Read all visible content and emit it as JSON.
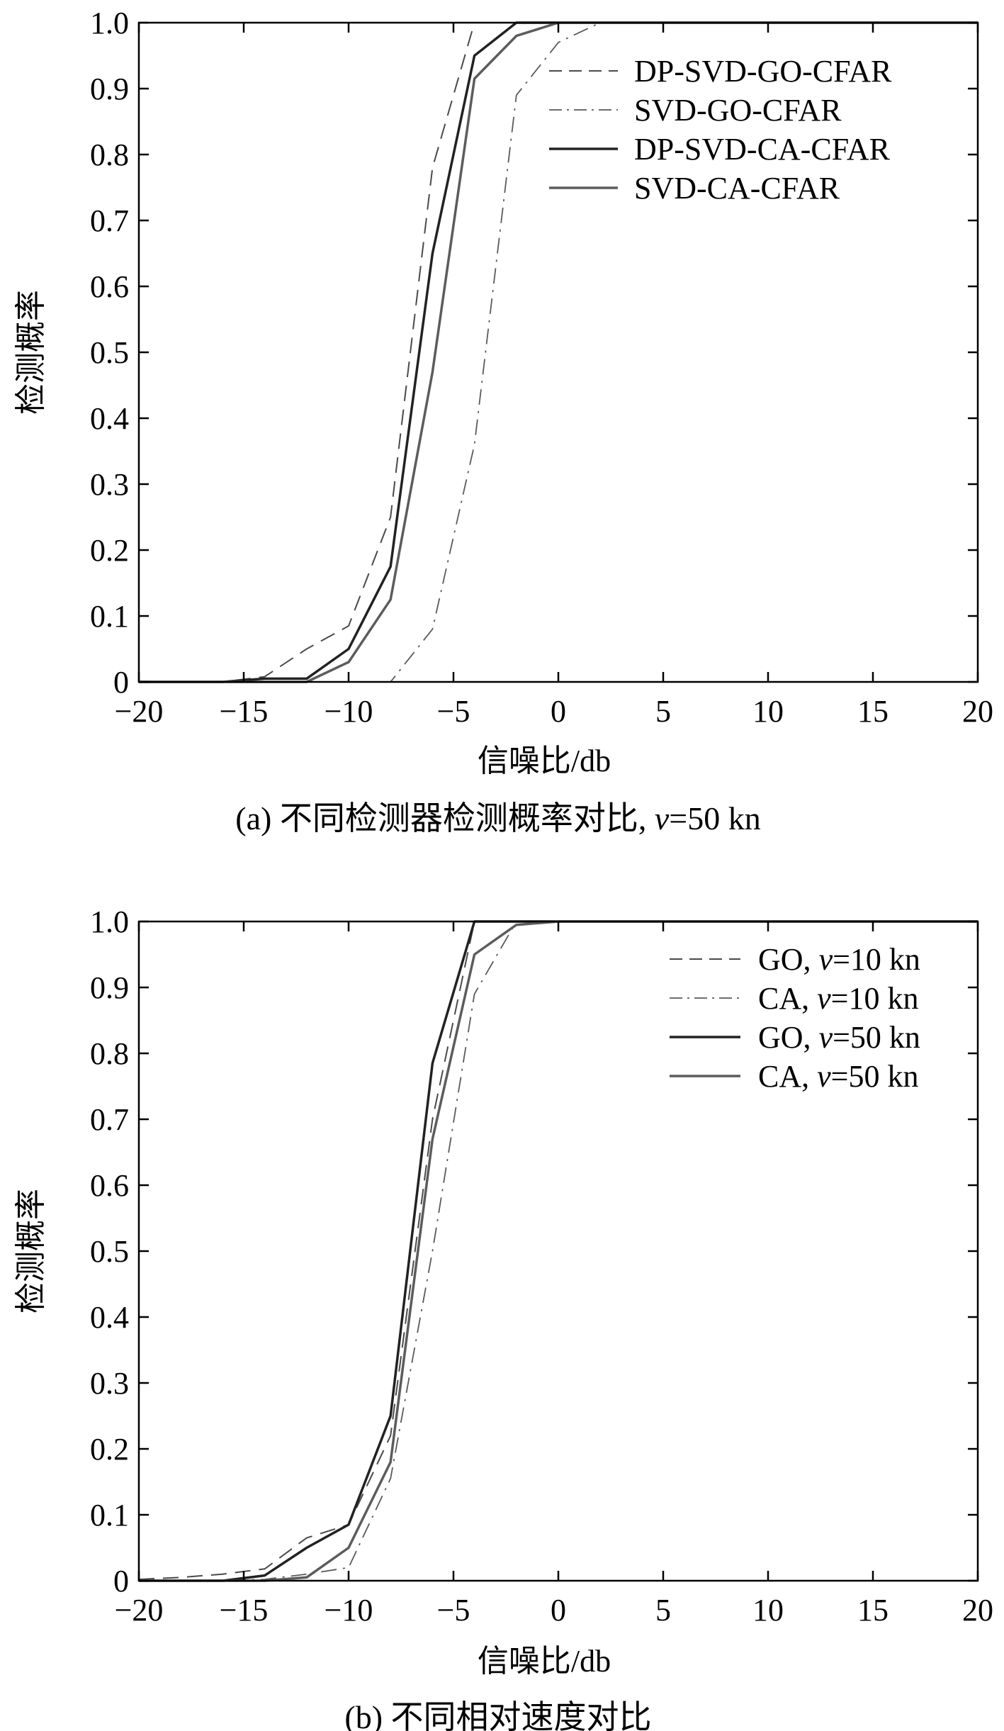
{
  "chart_data": [
    {
      "type": "line",
      "caption": {
        "prefix": "(a) 不同检测器检测概率对比, ",
        "var": "v",
        "suffix": "=50 kn"
      },
      "xlabel": "信噪比/db",
      "ylabel": "检测概率",
      "xlim": [
        -20,
        20
      ],
      "ylim": [
        0,
        1
      ],
      "xticks": [
        -20,
        -15,
        -10,
        -5,
        0,
        5,
        10,
        15,
        20
      ],
      "xtick_labels": [
        "−20",
        "−15",
        "−10",
        "−5",
        "0",
        "5",
        "10",
        "15",
        "20"
      ],
      "yticks": [
        0,
        0.1,
        0.2,
        0.3,
        0.4,
        0.5,
        0.6,
        0.7,
        0.8,
        0.9,
        1.0
      ],
      "ytick_labels": [
        "0",
        "0.1",
        "0.2",
        "0.3",
        "0.4",
        "0.5",
        "0.6",
        "0.7",
        "0.8",
        "0.9",
        "1.0"
      ],
      "grid": false,
      "legend_position": "top-right",
      "series": [
        {
          "legend": {
            "parts": [
              {
                "t": "DP-SVD-GO-CFAR",
                "i": false
              }
            ]
          },
          "style": "dashed",
          "color": "#4a4a4a",
          "width": 2,
          "x": [
            -20,
            -18,
            -16,
            -14,
            -12,
            -10,
            -8,
            -6,
            -4,
            -2,
            0,
            20
          ],
          "y": [
            0,
            0,
            0,
            0.008,
            0.05,
            0.085,
            0.25,
            0.78,
            1.0,
            1.0,
            1.0,
            1.0
          ]
        },
        {
          "legend": {
            "parts": [
              {
                "t": "SVD-GO-CFAR",
                "i": false
              }
            ]
          },
          "style": "dashdot",
          "color": "#5a5a5a",
          "width": 1.8,
          "x": [
            -20,
            -18,
            -16,
            -14,
            -12,
            -10,
            -8,
            -6,
            -4,
            -2,
            0,
            2,
            20
          ],
          "y": [
            0,
            0,
            0,
            0,
            0,
            0,
            0,
            0.08,
            0.36,
            0.89,
            0.97,
            1.0,
            1.0
          ]
        },
        {
          "legend": {
            "parts": [
              {
                "t": "DP-SVD-CA-CFAR",
                "i": false
              }
            ]
          },
          "style": "solid",
          "color": "#222222",
          "width": 3.5,
          "x": [
            -20,
            -18,
            -16,
            -14,
            -12,
            -10,
            -8,
            -6,
            -4,
            -2,
            0,
            20
          ],
          "y": [
            0,
            0,
            0,
            0.005,
            0.005,
            0.05,
            0.175,
            0.65,
            0.95,
            1.0,
            1.0,
            1.0
          ]
        },
        {
          "legend": {
            "parts": [
              {
                "t": "SVD-CA-CFAR",
                "i": false
              }
            ]
          },
          "style": "solid",
          "color": "#5c5c5c",
          "width": 3.5,
          "x": [
            -20,
            -18,
            -16,
            -14,
            -12,
            -10,
            -8,
            -6,
            -4,
            -2,
            0,
            20
          ],
          "y": [
            0,
            0,
            0,
            0,
            0,
            0.03,
            0.125,
            0.47,
            0.915,
            0.98,
            1.0,
            1.0
          ]
        }
      ]
    },
    {
      "type": "line",
      "caption": {
        "prefix": "(b) 不同相对速度对比",
        "var": "",
        "suffix": ""
      },
      "xlabel": "信噪比/db",
      "ylabel": "检测概率",
      "xlim": [
        -20,
        20
      ],
      "ylim": [
        0,
        1
      ],
      "xticks": [
        -20,
        -15,
        -10,
        -5,
        0,
        5,
        10,
        15,
        20
      ],
      "xtick_labels": [
        "−20",
        "−15",
        "−10",
        "−5",
        "0",
        "5",
        "10",
        "15",
        "20"
      ],
      "yticks": [
        0,
        0.1,
        0.2,
        0.3,
        0.4,
        0.5,
        0.6,
        0.7,
        0.8,
        0.9,
        1.0
      ],
      "ytick_labels": [
        "0",
        "0.1",
        "0.2",
        "0.3",
        "0.4",
        "0.5",
        "0.6",
        "0.7",
        "0.8",
        "0.9",
        "1.0"
      ],
      "grid": false,
      "legend_position": "top-right",
      "series": [
        {
          "legend": {
            "parts": [
              {
                "t": "GO, ",
                "i": false
              },
              {
                "t": "v",
                "i": true
              },
              {
                "t": "=10 kn",
                "i": false
              }
            ]
          },
          "style": "dashed",
          "color": "#4a4a4a",
          "width": 2,
          "x": [
            -20,
            -18,
            -16,
            -14,
            -12,
            -10,
            -8,
            -6,
            -4,
            -2,
            0,
            20
          ],
          "y": [
            0.002,
            0.005,
            0.01,
            0.018,
            0.065,
            0.085,
            0.22,
            0.7,
            1.0,
            1.0,
            1.0,
            1.0
          ]
        },
        {
          "legend": {
            "parts": [
              {
                "t": "CA, ",
                "i": false
              },
              {
                "t": "v",
                "i": true
              },
              {
                "t": "=10 kn",
                "i": false
              }
            ]
          },
          "style": "dashdot",
          "color": "#5a5a5a",
          "width": 1.8,
          "x": [
            -20,
            -18,
            -16,
            -14,
            -12,
            -10,
            -8,
            -6,
            -4,
            -2,
            0,
            20
          ],
          "y": [
            0,
            0,
            0,
            0.002,
            0.01,
            0.02,
            0.155,
            0.5,
            0.89,
            1.0,
            1.0,
            1.0
          ]
        },
        {
          "legend": {
            "parts": [
              {
                "t": "GO, ",
                "i": false
              },
              {
                "t": "v",
                "i": true
              },
              {
                "t": "=50 kn",
                "i": false
              }
            ]
          },
          "style": "solid",
          "color": "#222222",
          "width": 3.5,
          "x": [
            -20,
            -18,
            -16,
            -14,
            -12,
            -10,
            -8,
            -6,
            -4,
            -2,
            0,
            20
          ],
          "y": [
            0,
            0,
            0,
            0.008,
            0.05,
            0.085,
            0.25,
            0.785,
            1.0,
            1.0,
            1.0,
            1.0
          ]
        },
        {
          "legend": {
            "parts": [
              {
                "t": "CA, ",
                "i": false
              },
              {
                "t": "v",
                "i": true
              },
              {
                "t": "=50 kn",
                "i": false
              }
            ]
          },
          "style": "solid",
          "color": "#5c5c5c",
          "width": 3.5,
          "x": [
            -20,
            -18,
            -16,
            -14,
            -12,
            -10,
            -8,
            -6,
            -4,
            -2,
            0,
            20
          ],
          "y": [
            0,
            0,
            0,
            0,
            0.005,
            0.05,
            0.18,
            0.67,
            0.95,
            0.995,
            1.0,
            1.0
          ]
        }
      ]
    }
  ]
}
